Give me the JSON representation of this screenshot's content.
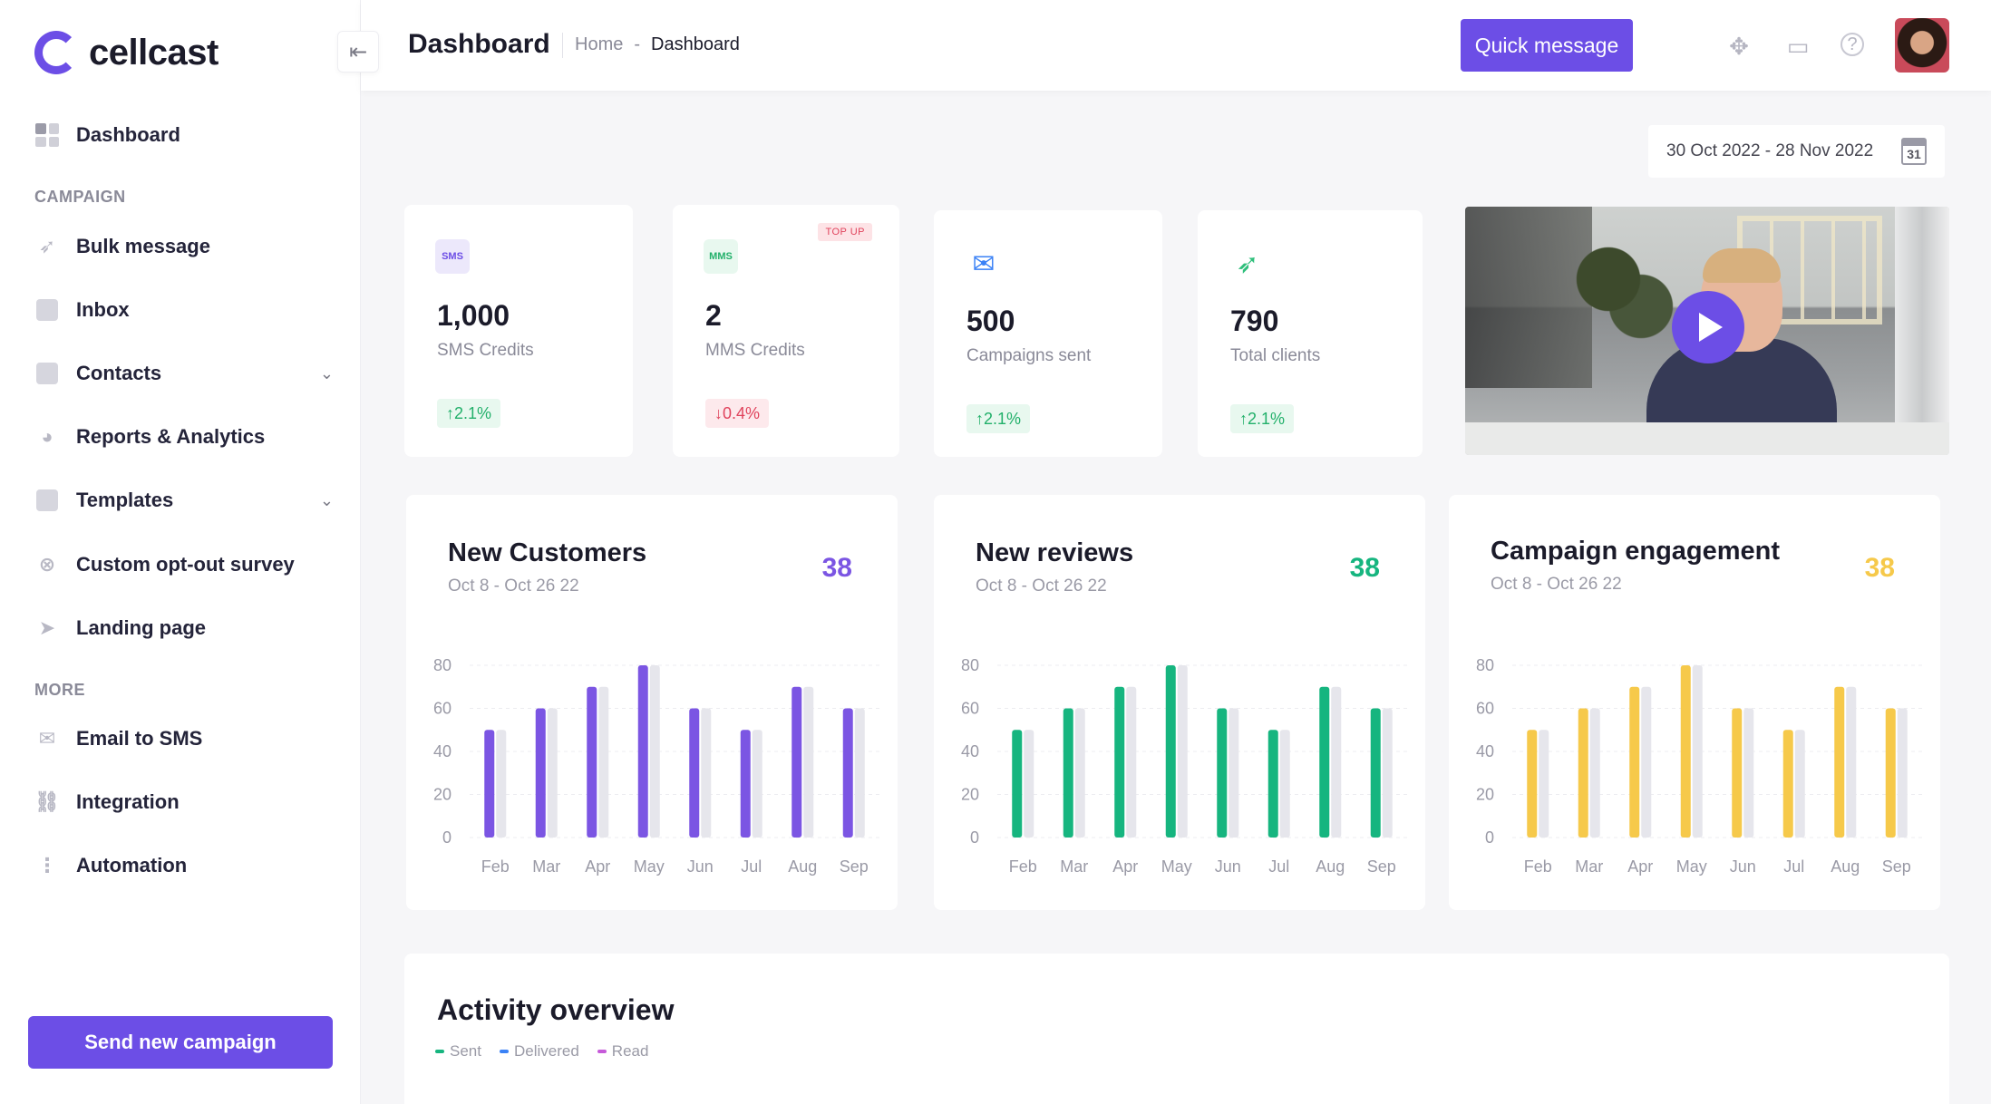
{
  "app": {
    "name": "cellcast"
  },
  "sidebar": {
    "items": [
      {
        "label": "Dashboard",
        "icon": "grid-icon"
      },
      {
        "label": "Bulk message",
        "icon": "rocket-icon"
      },
      {
        "label": "Inbox",
        "icon": "inbox-icon"
      },
      {
        "label": "Contacts",
        "icon": "contacts-icon"
      },
      {
        "label": "Reports & Analytics",
        "icon": "pie-chart-icon"
      },
      {
        "label": "Templates",
        "icon": "template-icon"
      },
      {
        "label": "Custom opt-out survey",
        "icon": "close-circle-icon"
      },
      {
        "label": "Landing page",
        "icon": "cursor-icon"
      },
      {
        "label": "Email to SMS",
        "icon": "mail-icon"
      },
      {
        "label": "Integration",
        "icon": "link-icon"
      },
      {
        "label": "Automation",
        "icon": "flow-icon"
      }
    ],
    "section_campaign": "CAMPAIGN",
    "section_more": "MORE",
    "send_button": "Send new campaign"
  },
  "header": {
    "title": "Dashboard",
    "breadcrumb": [
      "Home",
      "-",
      "Dashboard"
    ],
    "quick_message": "Quick message"
  },
  "date_range": {
    "label": "30 Oct 2022 - 28 Nov 2022",
    "calendar_day": "31"
  },
  "stats": [
    {
      "badge": "SMS",
      "value": "1,000",
      "label": "SMS Credits",
      "delta": "2.1%",
      "direction": "up"
    },
    {
      "badge": "MMS",
      "value": "2",
      "label": "MMS Credits",
      "delta": "0.4%",
      "direction": "down",
      "tag": "TOP UP"
    },
    {
      "badge": "mail-icon",
      "value": "500",
      "label": "Campaigns sent",
      "delta": "2.1%",
      "direction": "up"
    },
    {
      "badge": "rocket-icon",
      "value": "790",
      "label": "Total clients",
      "delta": "2.1%",
      "direction": "up"
    }
  ],
  "chart_data": [
    {
      "type": "bar",
      "title": "New Customers",
      "subtitle": "Oct 8 - Oct 26 22",
      "total": "38",
      "color": "#7b55e3",
      "categories": [
        "Feb",
        "Mar",
        "Apr",
        "May",
        "Jun",
        "Jul",
        "Aug",
        "Sep"
      ],
      "series": [
        {
          "values": [
            50,
            60,
            70,
            80,
            60,
            50,
            70,
            60
          ]
        },
        {
          "values": [
            50,
            60,
            70,
            80,
            60,
            50,
            70,
            60
          ]
        }
      ],
      "yticks": [
        "80",
        "60",
        "40",
        "20",
        "0"
      ],
      "ylim": [
        0,
        80
      ]
    },
    {
      "type": "bar",
      "title": "New reviews",
      "subtitle": "Oct 8 - Oct 26 22",
      "total": "38",
      "color": "#16b57f",
      "categories": [
        "Feb",
        "Mar",
        "Apr",
        "May",
        "Jun",
        "Jul",
        "Aug",
        "Sep"
      ],
      "series": [
        {
          "values": [
            50,
            60,
            70,
            80,
            60,
            50,
            70,
            60
          ]
        },
        {
          "values": [
            50,
            60,
            70,
            80,
            60,
            50,
            70,
            60
          ]
        }
      ],
      "yticks": [
        "80",
        "60",
        "40",
        "20",
        "0"
      ],
      "ylim": [
        0,
        80
      ]
    },
    {
      "type": "bar",
      "title": "Campaign engagement",
      "subtitle": "Oct 8 - Oct 26 22",
      "total": "38",
      "color": "#f6c94a",
      "categories": [
        "Feb",
        "Mar",
        "Apr",
        "May",
        "Jun",
        "Jul",
        "Aug",
        "Sep"
      ],
      "series": [
        {
          "values": [
            50,
            60,
            70,
            80,
            60,
            50,
            70,
            60
          ]
        },
        {
          "values": [
            50,
            60,
            70,
            80,
            60,
            50,
            70,
            60
          ]
        }
      ],
      "yticks": [
        "80",
        "60",
        "40",
        "20",
        "0"
      ],
      "ylim": [
        0,
        80
      ]
    }
  ],
  "activity": {
    "title": "Activity overview",
    "legend": [
      {
        "label": "Sent",
        "color": "#16b57f"
      },
      {
        "label": "Delivered",
        "color": "#3b82f6"
      },
      {
        "label": "Read",
        "color": "#c65ad9"
      }
    ]
  },
  "colors": {
    "accent": "#6c4ee6",
    "up": "#22b06a",
    "down": "#e0435c"
  }
}
